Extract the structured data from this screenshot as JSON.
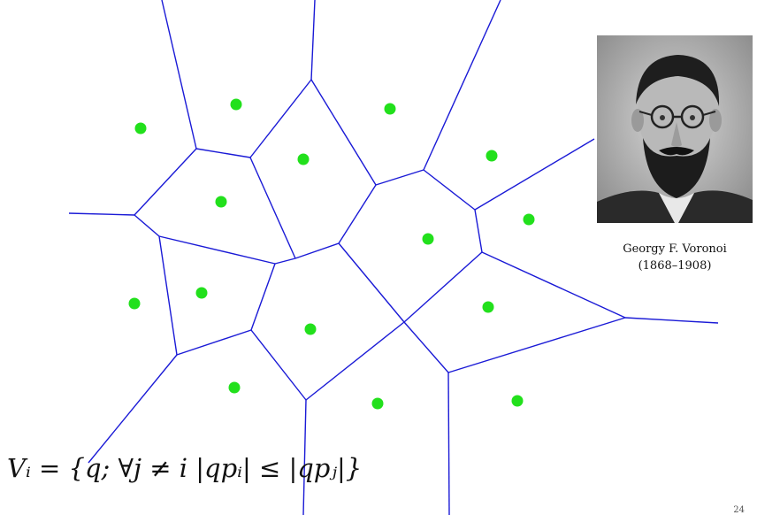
{
  "colors": {
    "edge": "#1a1ad6",
    "site": "#22e01c",
    "background": "#ffffff"
  },
  "portrait": {
    "icon": "portrait-photo-icon",
    "caption_name": "Georgy F. Voronoi",
    "caption_years": "(1868–1908)"
  },
  "formula": "Vᵢ = {q; ∀j ≠ i |qpᵢ| ≤ |qpⱼ|}",
  "page_number": "24"
}
